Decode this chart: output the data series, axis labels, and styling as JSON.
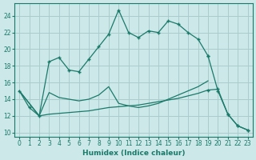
{
  "xlabel": "Humidex (Indice chaleur)",
  "background_color": "#cce8e8",
  "grid_color": "#aacccc",
  "line_color": "#1a7a6a",
  "x_ticks": [
    0,
    1,
    2,
    3,
    4,
    5,
    6,
    7,
    8,
    9,
    10,
    11,
    12,
    13,
    14,
    15,
    16,
    17,
    18,
    19,
    20,
    21,
    22,
    23
  ],
  "y_ticks": [
    10,
    12,
    14,
    16,
    18,
    20,
    22,
    24
  ],
  "xlim": [
    -0.5,
    23.5
  ],
  "ylim": [
    9.5,
    25.5
  ],
  "line_main": {
    "x": [
      0,
      1,
      2,
      3,
      4,
      5,
      6,
      7,
      8,
      9,
      10,
      11,
      12,
      13,
      14,
      15,
      16,
      17,
      18,
      19
    ],
    "y": [
      15.0,
      13.0,
      12.0,
      18.5,
      19.0,
      17.5,
      17.3,
      18.8,
      20.3,
      21.8,
      24.7,
      22.0,
      21.4,
      22.2,
      22.0,
      23.4,
      23.0,
      22.0,
      21.2,
      19.2
    ]
  },
  "line_right": {
    "x": [
      19,
      20,
      21,
      22,
      23
    ],
    "y": [
      19.2,
      15.0,
      12.2,
      10.8,
      10.3
    ]
  },
  "line_diag1": {
    "x": [
      0,
      2,
      3,
      4,
      5,
      6,
      7,
      8,
      9,
      10,
      11,
      12,
      13,
      14,
      15,
      16,
      17,
      18,
      19
    ],
    "y": [
      15.0,
      12.0,
      14.8,
      14.2,
      14.0,
      13.8,
      14.0,
      14.5,
      15.5,
      13.5,
      13.2,
      13.0,
      13.2,
      13.5,
      14.0,
      14.5,
      15.0,
      15.5,
      16.2
    ]
  },
  "line_diag2": {
    "x": [
      0,
      2,
      3,
      4,
      5,
      6,
      7,
      8,
      9,
      10,
      11,
      12,
      13,
      14,
      15,
      16,
      17,
      18,
      19
    ],
    "y": [
      15.0,
      12.0,
      12.2,
      12.3,
      12.4,
      12.5,
      12.6,
      12.8,
      13.0,
      13.1,
      13.2,
      13.3,
      13.5,
      13.7,
      13.9,
      14.1,
      14.4,
      14.7,
      15.1
    ]
  },
  "line_lower": {
    "x": [
      19,
      20,
      21,
      22,
      23
    ],
    "y": [
      15.1,
      15.2,
      12.2,
      10.8,
      10.3
    ]
  }
}
